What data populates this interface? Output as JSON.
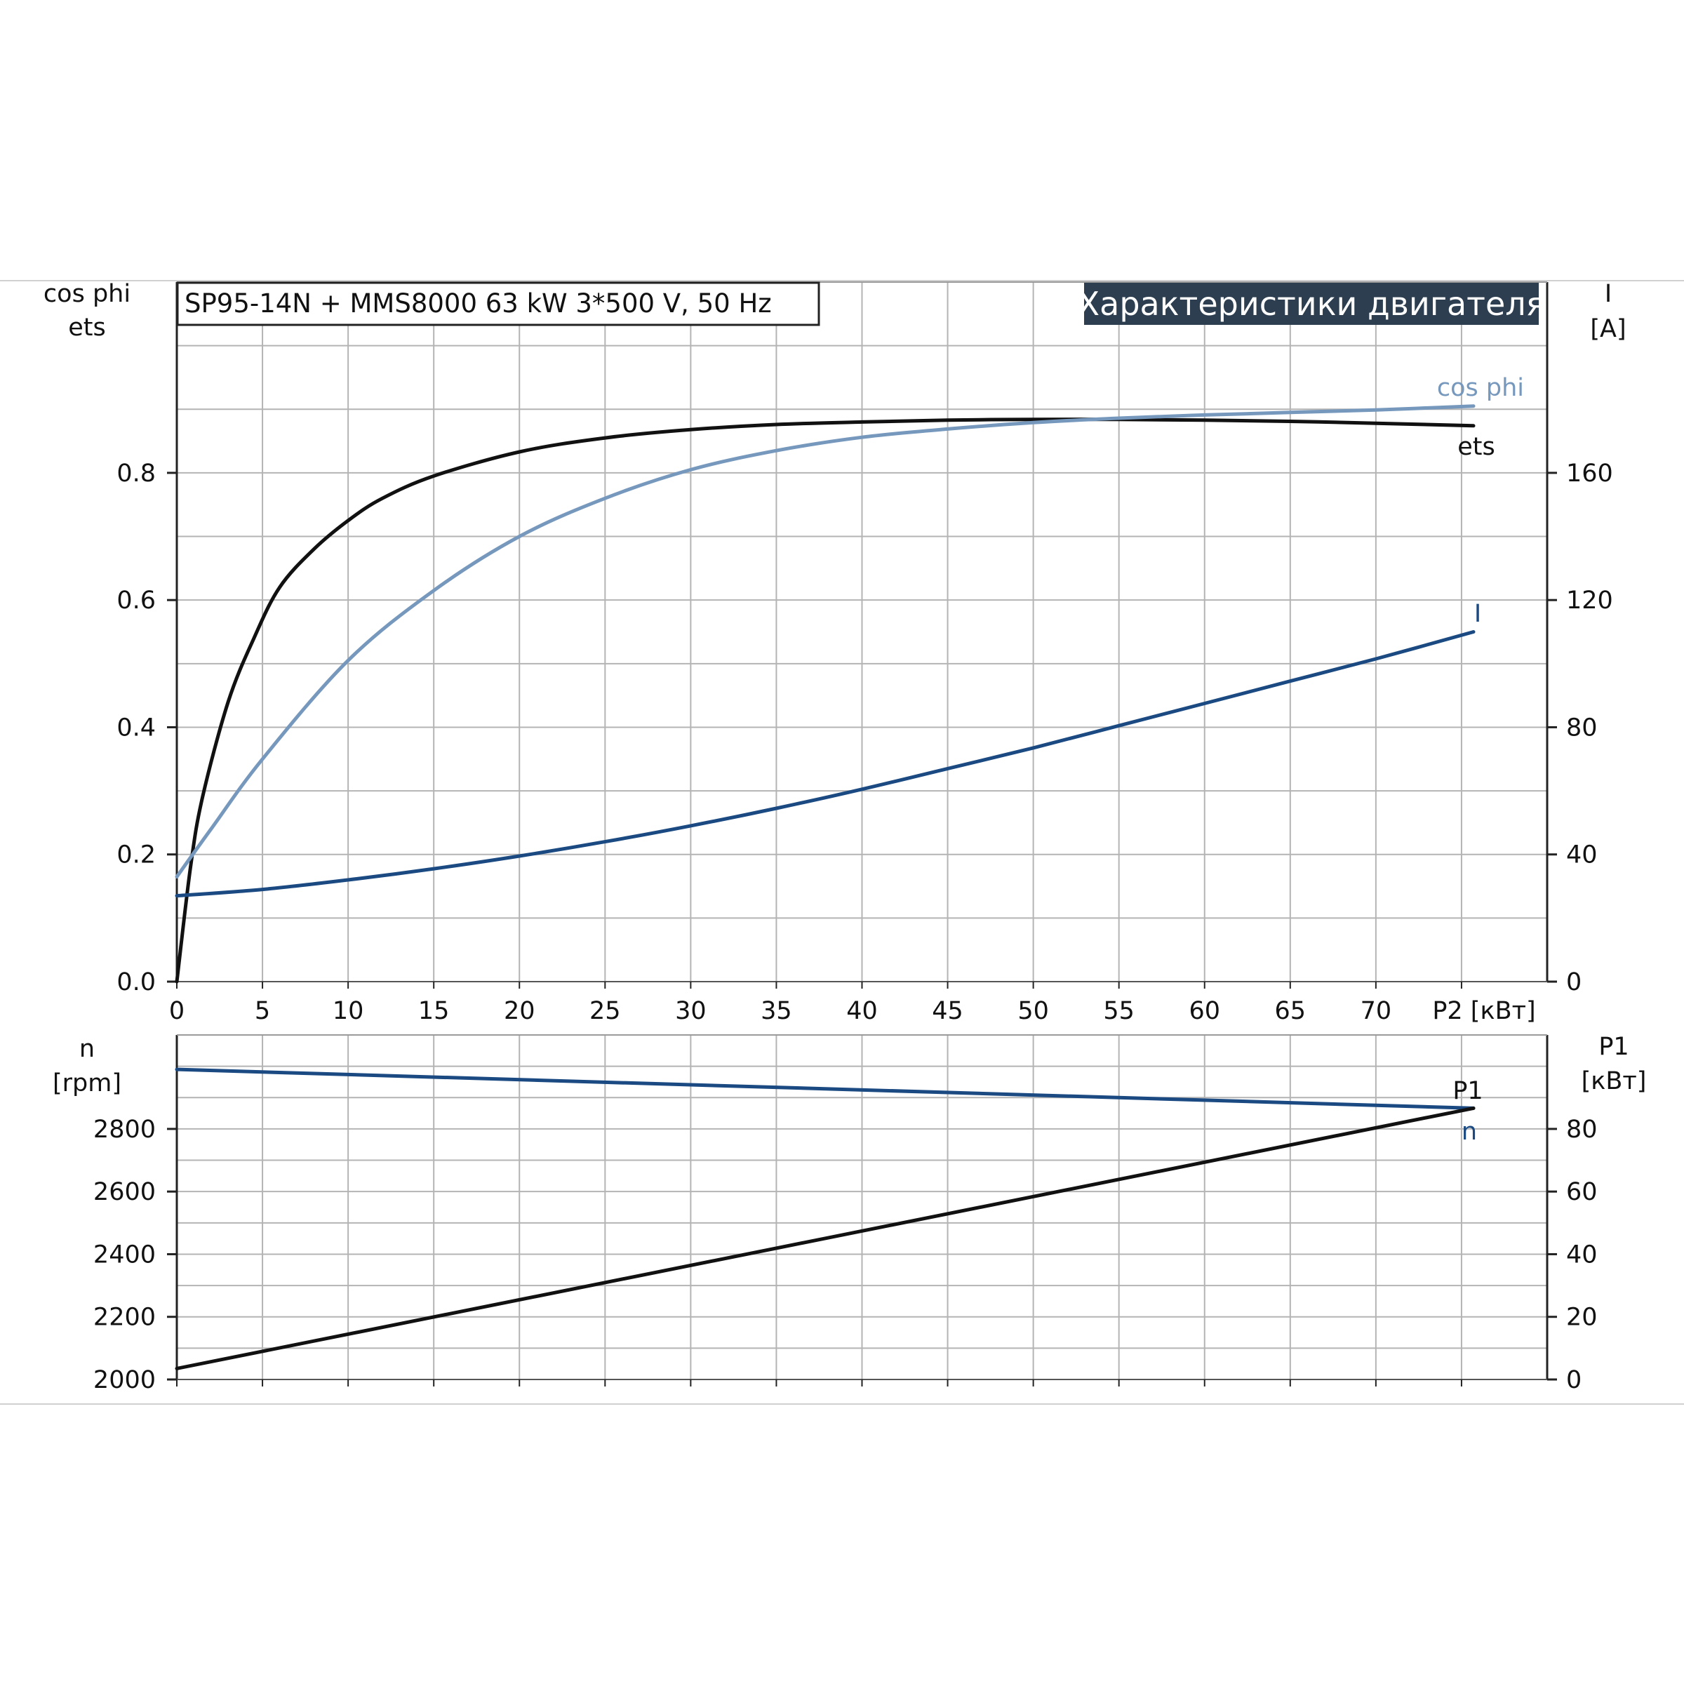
{
  "chart_data": [
    {
      "type": "line",
      "title": "SP95-14N + MMS8000   63 kW   3*500 V, 50 Hz",
      "badge": "Характеристики двигателя",
      "left_axis_label": [
        "cos phi",
        "ets"
      ],
      "right_axis_label": [
        "I",
        "[A]"
      ],
      "xlabel": "P2 [кВт]",
      "x_ticks": [
        "0",
        "5",
        "10",
        "15",
        "20",
        "25",
        "30",
        "35",
        "40",
        "45",
        "50",
        "55",
        "60",
        "65",
        "70"
      ],
      "y_left_ticks": [
        "0.0",
        "0.2",
        "0.4",
        "0.6",
        "0.8"
      ],
      "y_right_ticks": [
        "0",
        "40",
        "80",
        "120",
        "160"
      ],
      "xlim": [
        0,
        80
      ],
      "ylim_left": [
        0,
        1.1
      ],
      "ylim_right": [
        0,
        220
      ],
      "grid": true,
      "series": [
        {
          "name": "ets",
          "axis": "left",
          "color": "#111111",
          "x": [
            0,
            0.8,
            1.5,
            3,
            4.5,
            6,
            8,
            10,
            12,
            15,
            20,
            25,
            30,
            35,
            40,
            45,
            50,
            55,
            60,
            65,
            70,
            75.7
          ],
          "y": [
            0,
            0.18,
            0.29,
            0.44,
            0.54,
            0.62,
            0.68,
            0.725,
            0.76,
            0.795,
            0.833,
            0.855,
            0.868,
            0.876,
            0.88,
            0.883,
            0.884,
            0.884,
            0.883,
            0.881,
            0.878,
            0.874
          ]
        },
        {
          "name": "cos phi",
          "axis": "left",
          "color": "#7698bd",
          "x": [
            0,
            2,
            5,
            10,
            15,
            20,
            25,
            30,
            35,
            40,
            45,
            50,
            55,
            60,
            65,
            70,
            75.7
          ],
          "y": [
            0.165,
            0.24,
            0.35,
            0.505,
            0.615,
            0.7,
            0.76,
            0.805,
            0.835,
            0.856,
            0.869,
            0.879,
            0.886,
            0.891,
            0.895,
            0.899,
            0.905
          ]
        },
        {
          "name": "I",
          "axis": "right",
          "color": "#1b4a82",
          "x": [
            0,
            5,
            10,
            15,
            20,
            25,
            30,
            35,
            40,
            45,
            50,
            55,
            60,
            65,
            70,
            75.7
          ],
          "y": [
            27,
            29,
            32,
            35.5,
            39.5,
            44,
            49,
            54.5,
            60.5,
            67,
            73.5,
            80.5,
            87.5,
            94.5,
            101.5,
            110
          ]
        }
      ]
    },
    {
      "type": "line",
      "left_axis_label": [
        "n",
        "[rpm]"
      ],
      "right_axis_label": [
        "P1",
        "[кВт]"
      ],
      "y_left_ticks": [
        "2000",
        "2200",
        "2400",
        "2600",
        "2800"
      ],
      "y_right_ticks": [
        "0",
        "20",
        "40",
        "60",
        "80"
      ],
      "xlim": [
        0,
        80
      ],
      "ylim_left": [
        2000,
        3100
      ],
      "ylim_right": [
        0,
        110
      ],
      "grid": true,
      "series": [
        {
          "name": "n",
          "axis": "left",
          "color": "#1b4a82",
          "x": [
            0,
            75.7
          ],
          "y": [
            2990,
            2866
          ]
        },
        {
          "name": "P1",
          "axis": "right",
          "color": "#111111",
          "x": [
            0,
            75.7
          ],
          "y": [
            3.5,
            86.6
          ]
        }
      ]
    }
  ]
}
